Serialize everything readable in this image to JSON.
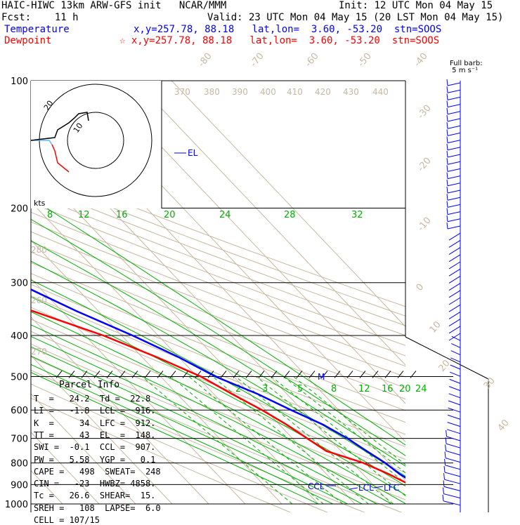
{
  "header": {
    "line1_left": "HAIC-HIWC 13km ARW-GFS init   NCAR/MMM",
    "line1_right": "Init: 12 UTC Mon 04 May 15",
    "line2_left": "Fcst:    11 h",
    "line2_right": "Valid: 23 UTC Mon 04 May 15 (20 LST Mon 04 May 15)",
    "temp_label": "Temperature",
    "temp_info": "x,y=257.78, 88.18   lat,lon=  3.60, -53.20  stn=SOOS",
    "dew_label": "Dewpoint",
    "dew_info": "☆ x,y=257.78, 88.18   lat,lon=  3.60, -53.20  stn=SOOS"
  },
  "colors": {
    "temperature": "#0000ff",
    "dewpoint": "#ff0000",
    "isotherm": "#c8b8a0",
    "mixing": "#00b000",
    "black": "#000000"
  },
  "barb_label": "Full barb:\n 5 m s⁻¹",
  "hodograph": {
    "unit_label": "kts",
    "ring_labels": [
      "20",
      "10"
    ]
  },
  "parcel_info": {
    "title": "Parcel Info",
    "rows": [
      "T  =   24.2  Td =  22.8",
      "LI =   -1.8  LCL =  916.",
      "K  =     34  LFC =  912.",
      "TT =     43  EL  =  148.",
      "SWI =  -0.1  CCL =  907.",
      "PW =   5.58  YGP =   0.1",
      "CAPE =   498  SWEAT=  248",
      "CIN =   -23  HWBZ= 4858.",
      "Tc =   26.6  SHEAR=  15.",
      "SREH =   108  LAPSE=  6.0",
      "CELL = 107/15"
    ]
  },
  "chart_data": {
    "type": "line",
    "title": "",
    "pressure_levels": [
      100,
      200,
      300,
      400,
      500,
      600,
      700,
      800,
      900,
      1000
    ],
    "pressure_labels": [
      "100",
      "200",
      "300",
      "400",
      "500",
      "600",
      "700",
      "800",
      "900",
      "1000"
    ],
    "isotherm_labels": [
      "-80",
      "-70",
      "-60",
      "-50",
      "-40",
      "-30",
      "-20",
      "-10",
      "0",
      "10",
      "20",
      "30",
      "40"
    ],
    "theta_labels": [
      "370",
      "380",
      "390",
      "400",
      "410",
      "420",
      "430",
      "440",
      "280",
      "270",
      "260"
    ],
    "mixing_labels_upper": [
      "8",
      "12",
      "16",
      "20",
      "24",
      "28",
      "32"
    ],
    "mixing_labels_lower": [
      "2",
      "3",
      "5",
      "8",
      "12",
      "16",
      "20",
      "24"
    ],
    "markers": {
      "el": "EL",
      "m": "M",
      "ccl": "CCL",
      "lcl": "LCL",
      "lfc": "LFC"
    },
    "series": [
      {
        "name": "Temperature",
        "color": "#0000ff",
        "points": [
          [
            100,
            -79
          ],
          [
            120,
            -72
          ],
          [
            150,
            -67
          ],
          [
            200,
            -56
          ],
          [
            250,
            -45
          ],
          [
            300,
            -35
          ],
          [
            350,
            -26
          ],
          [
            400,
            -17
          ],
          [
            450,
            -10
          ],
          [
            500,
            -5
          ],
          [
            550,
            2
          ],
          [
            600,
            7
          ],
          [
            650,
            12
          ],
          [
            700,
            15
          ],
          [
            750,
            17
          ],
          [
            800,
            19
          ],
          [
            850,
            20
          ],
          [
            900,
            22
          ],
          [
            950,
            24.2
          ]
        ]
      },
      {
        "name": "Dewpoint",
        "color": "#ff0000",
        "points": [
          [
            100,
            -95
          ],
          [
            120,
            -92
          ],
          [
            150,
            -90
          ],
          [
            200,
            -80
          ],
          [
            250,
            -74
          ],
          [
            300,
            -49
          ],
          [
            350,
            -38
          ],
          [
            400,
            -25
          ],
          [
            450,
            -16
          ],
          [
            500,
            -9
          ],
          [
            550,
            -5
          ],
          [
            600,
            -1
          ],
          [
            650,
            2
          ],
          [
            700,
            4
          ],
          [
            750,
            6
          ],
          [
            800,
            13
          ],
          [
            850,
            17
          ],
          [
            900,
            20
          ],
          [
            950,
            22.8
          ]
        ]
      }
    ]
  }
}
